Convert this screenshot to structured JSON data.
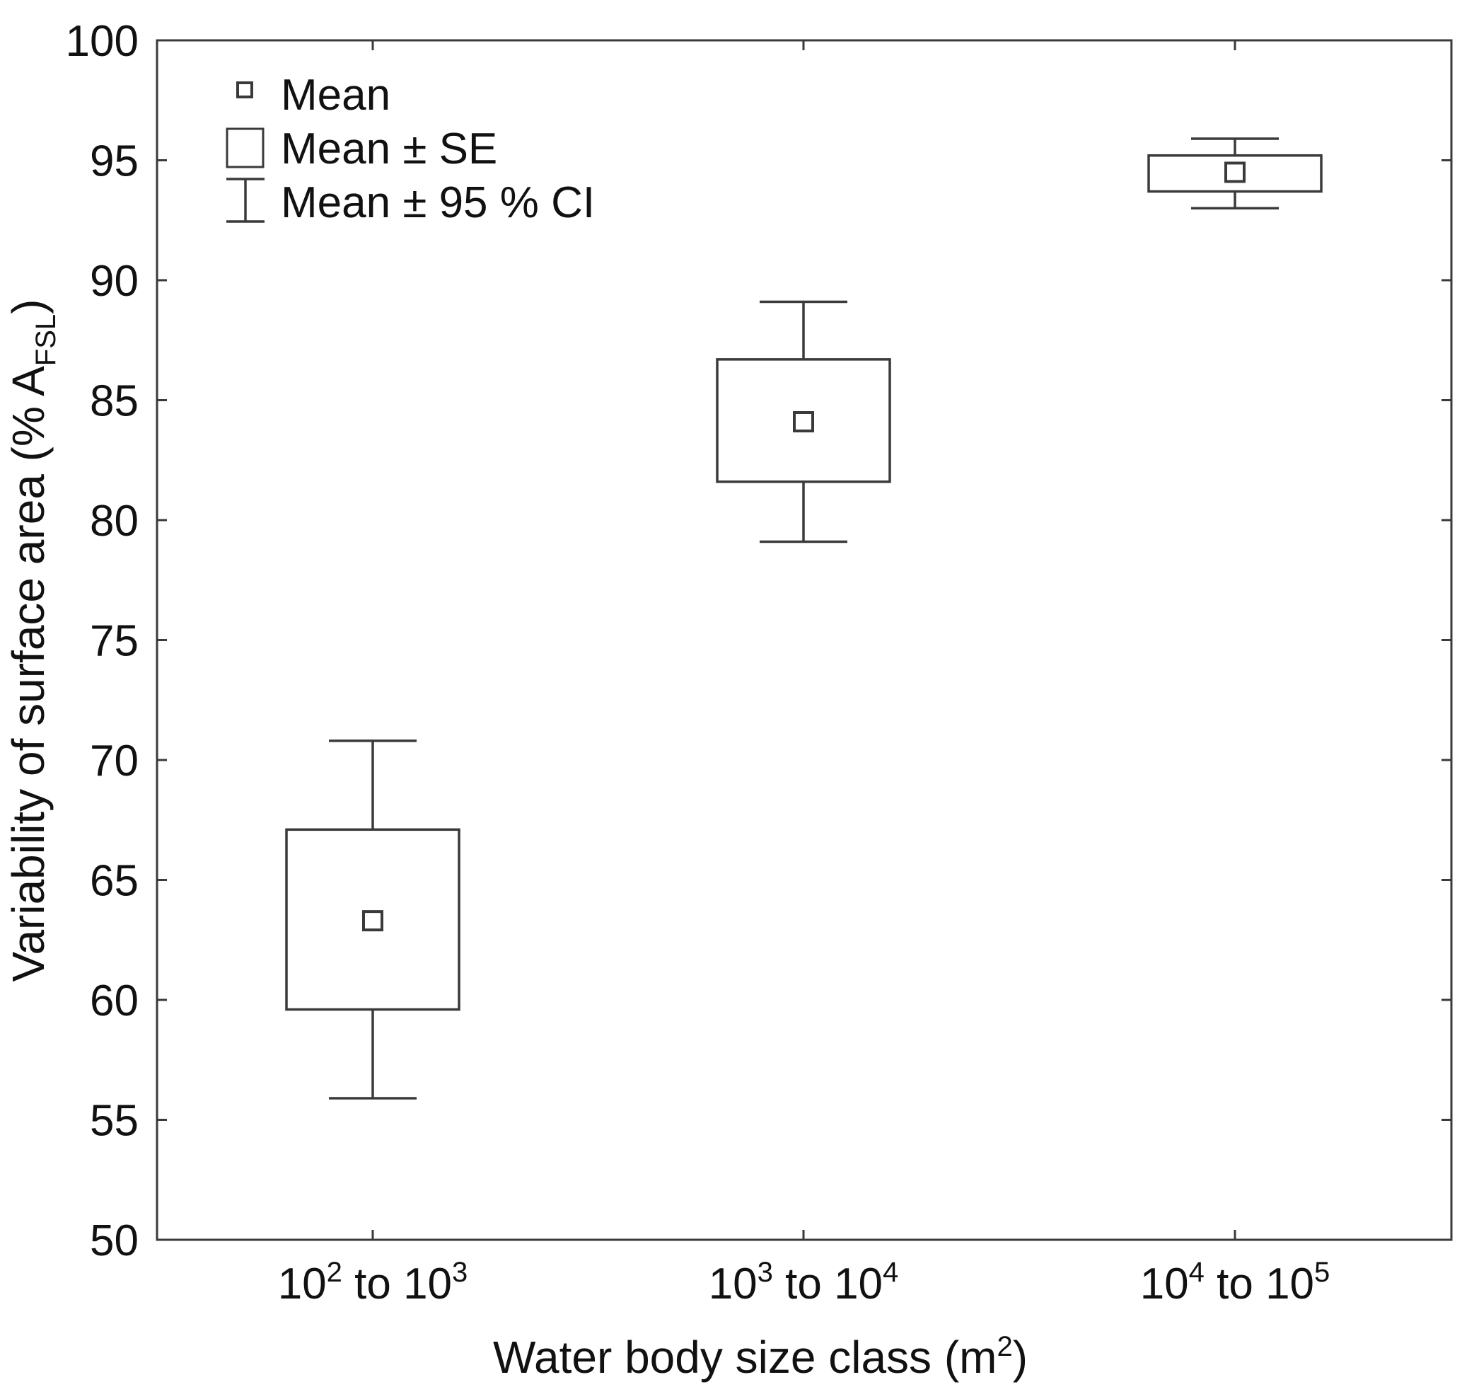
{
  "chart_data": {
    "type": "box",
    "categories": [
      {
        "base1": "10",
        "exp1": "2",
        "mid": " to ",
        "base2": "10",
        "exp2": "3"
      },
      {
        "base1": "10",
        "exp1": "3",
        "mid": " to ",
        "base2": "10",
        "exp2": "4"
      },
      {
        "base1": "10",
        "exp1": "4",
        "mid": " to ",
        "base2": "10",
        "exp2": "5"
      }
    ],
    "series": [
      {
        "category_index": 0,
        "mean": 63.3,
        "se_low": 59.6,
        "se_high": 67.1,
        "ci_low": 55.9,
        "ci_high": 70.8
      },
      {
        "category_index": 1,
        "mean": 84.1,
        "se_low": 81.6,
        "se_high": 86.7,
        "ci_low": 79.1,
        "ci_high": 89.1
      },
      {
        "category_index": 2,
        "mean": 94.5,
        "se_low": 93.7,
        "se_high": 95.2,
        "ci_low": 93.0,
        "ci_high": 95.9
      }
    ],
    "ylim": [
      50,
      100
    ],
    "yticks": [
      50,
      55,
      60,
      65,
      70,
      75,
      80,
      85,
      90,
      95,
      100
    ],
    "xlabel": {
      "main": "Water body size class (m",
      "sup": "2",
      "end": ")"
    },
    "ylabel": {
      "main": "Variability of surface area (% A",
      "sub": "FSL",
      "end": ")"
    },
    "legend": {
      "position": "top-left",
      "items": [
        {
          "symbol": "mean-marker",
          "label": "Mean"
        },
        {
          "symbol": "se-box",
          "label": "Mean ± SE"
        },
        {
          "symbol": "ci-whisker",
          "label": "Mean ± 95 % CI"
        }
      ]
    },
    "grid": false,
    "colors": {
      "stroke": "#3a3a3a",
      "text": "#111111",
      "background": "#ffffff"
    }
  }
}
